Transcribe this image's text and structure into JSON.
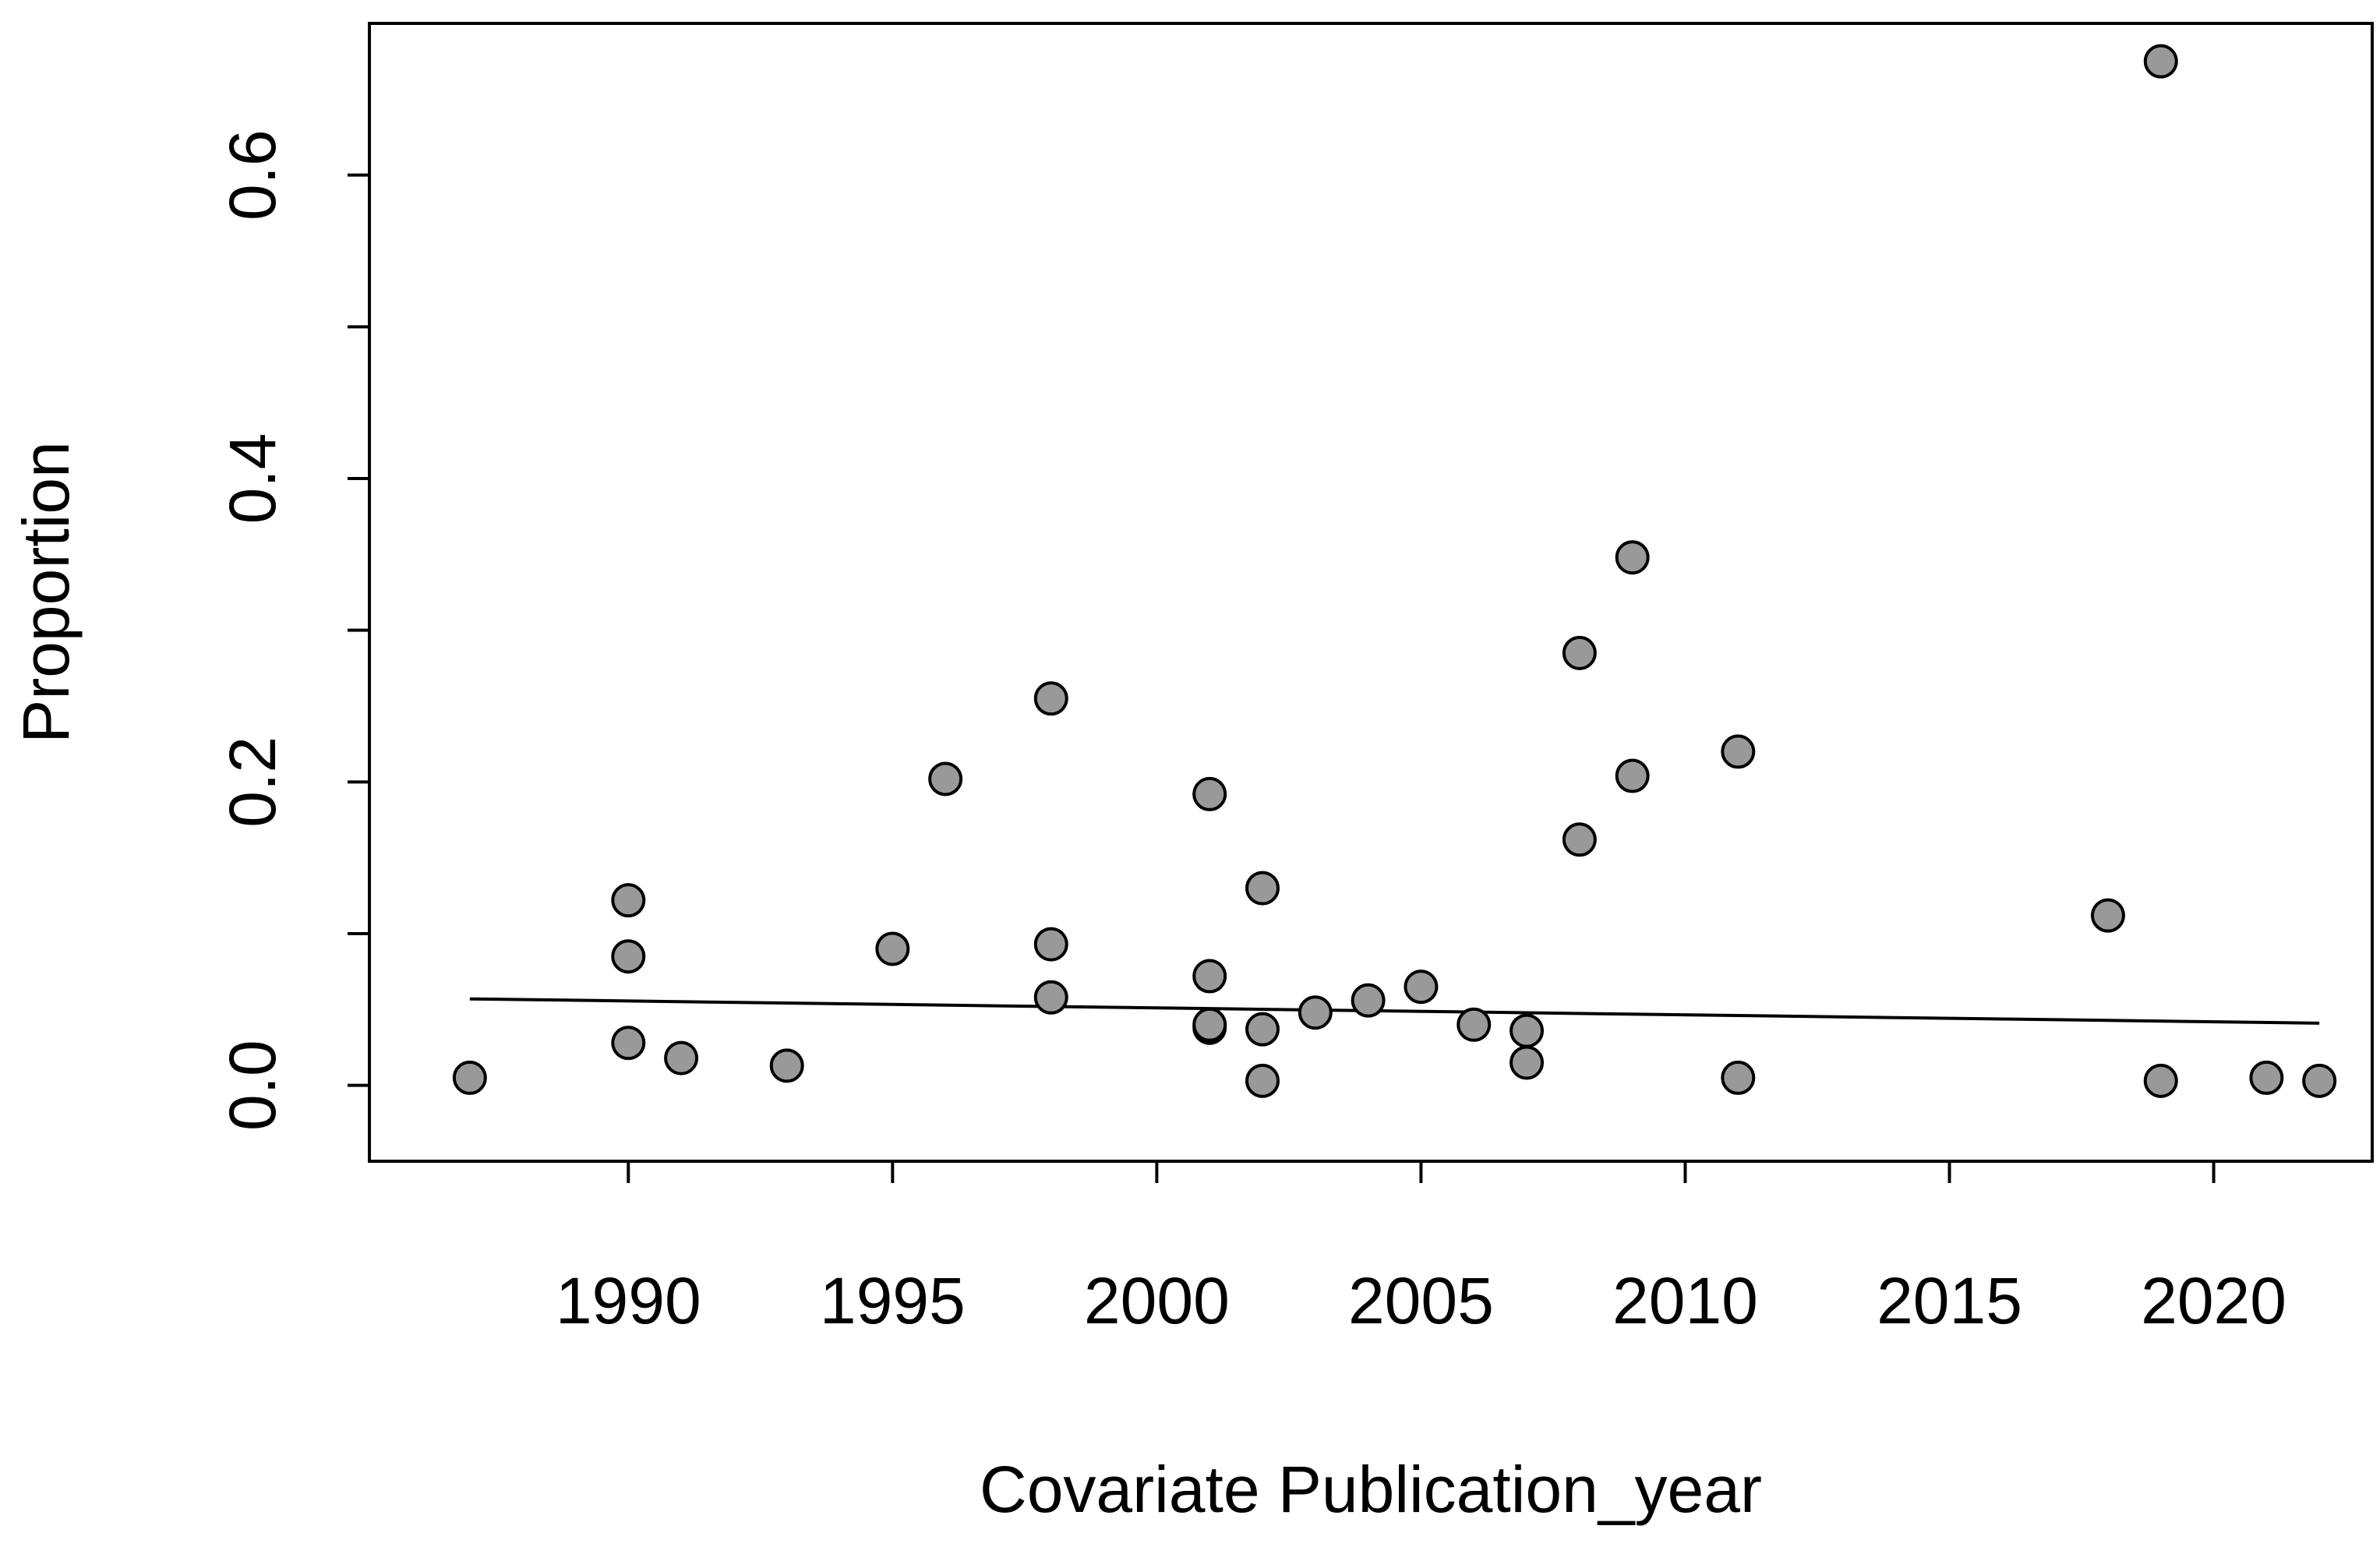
{
  "chart_data": {
    "type": "scatter",
    "title": "",
    "xlabel": "Covariate Publication_year",
    "ylabel": "Proportion",
    "xlim": [
      1985.1,
      2023.0
    ],
    "ylim": [
      -0.05,
      0.7
    ],
    "x_ticks": [
      1990,
      1995,
      2000,
      2005,
      2010,
      2015,
      2020
    ],
    "y_ticks": [
      0.0,
      0.1,
      0.2,
      0.3,
      0.4,
      0.5,
      0.6
    ],
    "y_tick_labels": [
      "0.0",
      "",
      "0.2",
      "",
      "0.4",
      "",
      "0.6"
    ],
    "grid": false,
    "legend": "none",
    "point_fill": "#999999",
    "point_stroke": "#000000",
    "line_color": "#000000",
    "series": [
      {
        "points": [
          [
            1987,
            0.005
          ],
          [
            1990,
            0.122
          ],
          [
            1990,
            0.085
          ],
          [
            1990,
            0.028
          ],
          [
            1991,
            0.018
          ],
          [
            1993,
            0.013
          ],
          [
            1995,
            0.09
          ],
          [
            1996,
            0.202
          ],
          [
            1998,
            0.255
          ],
          [
            1998,
            0.093
          ],
          [
            1998,
            0.058
          ],
          [
            2001,
            0.192
          ],
          [
            2001,
            0.072
          ],
          [
            2001,
            0.038
          ],
          [
            2001,
            0.04
          ],
          [
            2002,
            0.13
          ],
          [
            2002,
            0.037
          ],
          [
            2002,
            0.003
          ],
          [
            2003,
            0.048
          ],
          [
            2004,
            0.056
          ],
          [
            2005,
            0.065
          ],
          [
            2006,
            0.04
          ],
          [
            2007,
            0.036
          ],
          [
            2007,
            0.015
          ],
          [
            2008,
            0.285
          ],
          [
            2008,
            0.162
          ],
          [
            2009,
            0.348
          ],
          [
            2009,
            0.204
          ],
          [
            2011,
            0.22
          ],
          [
            2011,
            0.005
          ],
          [
            2018,
            0.112
          ],
          [
            2019,
            0.675
          ],
          [
            2019,
            0.003
          ],
          [
            2021,
            0.005
          ],
          [
            2022,
            0.003
          ]
        ]
      },
      {
        "type": "line",
        "x": [
          1987,
          2022
        ],
        "y": [
          0.057,
          0.041
        ]
      }
    ]
  }
}
